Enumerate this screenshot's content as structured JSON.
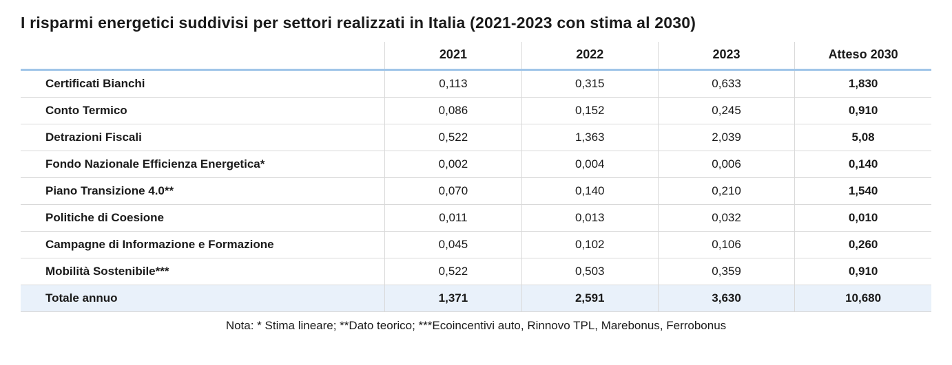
{
  "title": "I risparmi energetici suddivisi per settori realizzati in Italia (2021-2023 con stima al 2030)",
  "table": {
    "type": "table",
    "columns": [
      "",
      "2021",
      "2022",
      "2023",
      "Atteso 2030"
    ],
    "column_widths_pct": [
      40,
      15,
      15,
      15,
      15
    ],
    "column_alignment": [
      "left",
      "center",
      "center",
      "center",
      "center"
    ],
    "header_border_color": "#9fc5e8",
    "cell_border_color": "#d9d9d9",
    "total_row_bg": "#e9f1fa",
    "header_fontsize": 18,
    "cell_fontsize": 17,
    "label_bold": true,
    "atteso_bold": true,
    "rows": [
      {
        "label": "Certificati Bianchi",
        "values": [
          "0,113",
          "0,315",
          "0,633",
          "1,830"
        ]
      },
      {
        "label": "Conto Termico",
        "values": [
          "0,086",
          "0,152",
          "0,245",
          "0,910"
        ]
      },
      {
        "label": "Detrazioni Fiscali",
        "values": [
          "0,522",
          "1,363",
          "2,039",
          "5,08"
        ]
      },
      {
        "label": "Fondo Nazionale Efficienza Energetica*",
        "values": [
          "0,002",
          "0,004",
          "0,006",
          "0,140"
        ]
      },
      {
        "label": "Piano Transizione 4.0**",
        "values": [
          "0,070",
          "0,140",
          "0,210",
          "1,540"
        ]
      },
      {
        "label": "Politiche di Coesione",
        "values": [
          "0,011",
          "0,013",
          "0,032",
          "0,010"
        ]
      },
      {
        "label": "Campagne di Informazione e Formazione",
        "values": [
          "0,045",
          "0,102",
          "0,106",
          "0,260"
        ]
      },
      {
        "label": "Mobilità Sostenibile***",
        "values": [
          "0,522",
          "0,503",
          "0,359",
          "0,910"
        ]
      }
    ],
    "total_row": {
      "label": "Totale annuo",
      "values": [
        "1,371",
        "2,591",
        "3,630",
        "10,680"
      ]
    }
  },
  "footnote": "Nota: * Stima lineare; **Dato teorico; ***Ecoincentivi auto, Rinnovo TPL, Marebonus, Ferrobonus",
  "colors": {
    "background": "#ffffff",
    "text": "#1a1a1a"
  }
}
